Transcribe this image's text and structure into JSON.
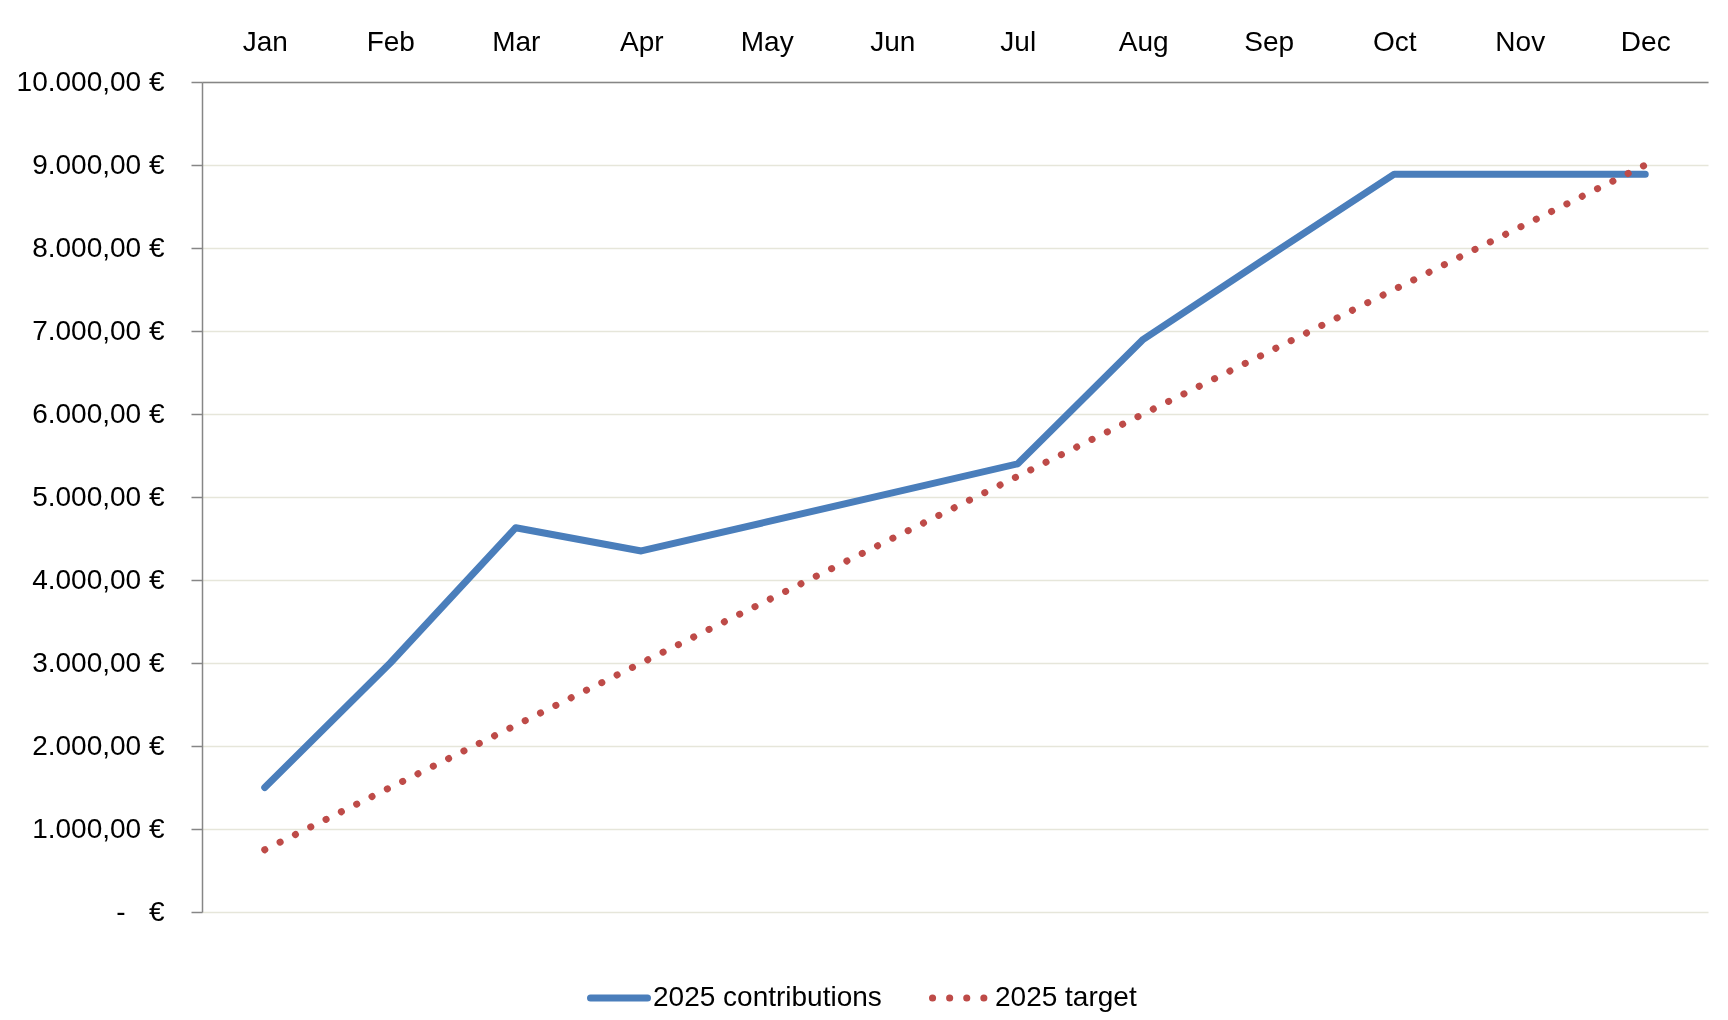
{
  "chart_data": {
    "type": "line",
    "categories": [
      "Jan",
      "Feb",
      "Mar",
      "Apr",
      "May",
      "Jun",
      "Jul",
      "Aug",
      "Sep",
      "Oct",
      "Nov",
      "Dec"
    ],
    "ylim": [
      0,
      10000
    ],
    "yticks": [
      {
        "value": 0,
        "label": "-   €"
      },
      {
        "value": 1000,
        "label": "1.000,00 €"
      },
      {
        "value": 2000,
        "label": "2.000,00 €"
      },
      {
        "value": 3000,
        "label": "3.000,00 €"
      },
      {
        "value": 4000,
        "label": "4.000,00 €"
      },
      {
        "value": 5000,
        "label": "5.000,00 €"
      },
      {
        "value": 6000,
        "label": "6.000,00 €"
      },
      {
        "value": 7000,
        "label": "7.000,00 €"
      },
      {
        "value": 8000,
        "label": "8.000,00 €"
      },
      {
        "value": 9000,
        "label": "9.000,00 €"
      },
      {
        "value": 10000,
        "label": "10.000,00 €"
      }
    ],
    "grid": "y",
    "legend": "bottom",
    "series": [
      {
        "name": "2025 contributions",
        "color": "#4a7ebb",
        "line_style": "solid",
        "values": [
          1500,
          3000,
          4630,
          4350,
          4700,
          5050,
          5400,
          6900,
          7900,
          8890,
          8890,
          8890
        ]
      },
      {
        "name": "2025 target",
        "color": "#be4b48",
        "line_style": "dotted",
        "values": [
          750,
          1500,
          2250,
          3000,
          3750,
          4500,
          5250,
          6000,
          6750,
          7500,
          8250,
          9000
        ]
      }
    ]
  }
}
